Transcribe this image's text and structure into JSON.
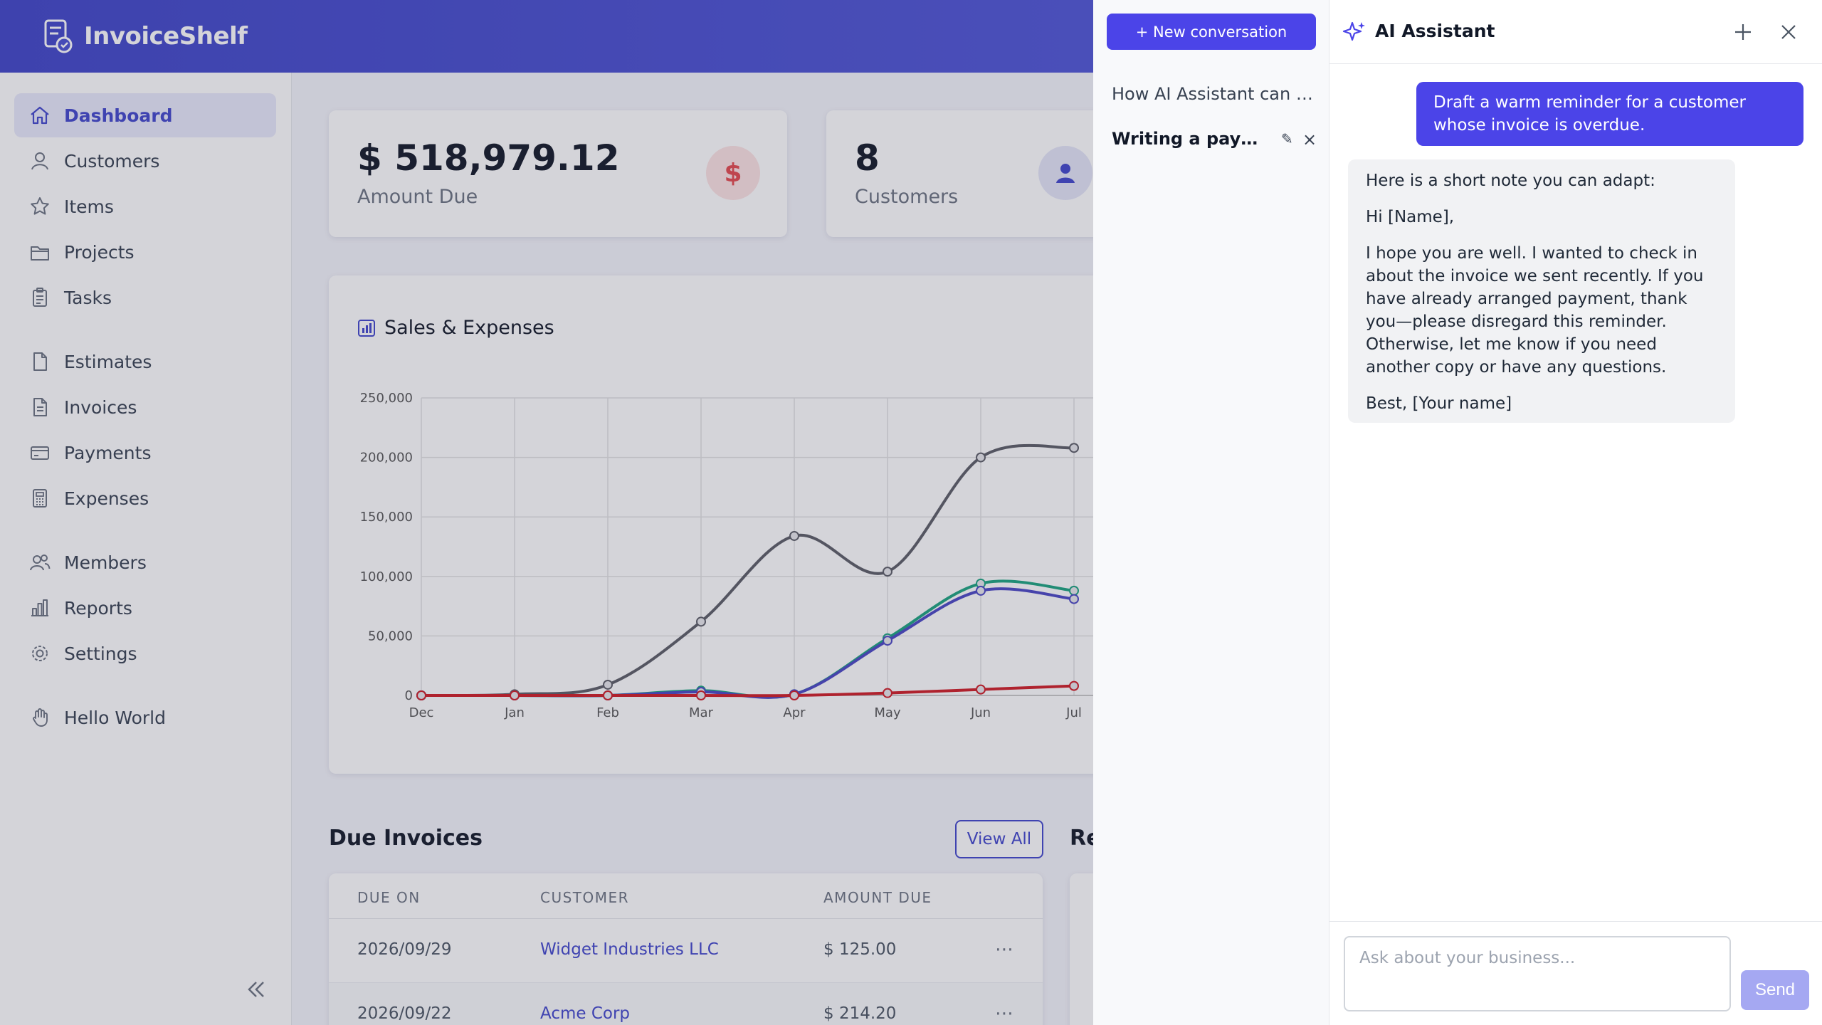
{
  "app": {
    "name": "InvoiceShelf"
  },
  "sidebar": {
    "items": [
      {
        "label": "Dashboard",
        "icon": "home-icon",
        "active": true
      },
      {
        "label": "Customers",
        "icon": "user-icon"
      },
      {
        "label": "Items",
        "icon": "star-icon"
      },
      {
        "label": "Projects",
        "icon": "folder-icon"
      },
      {
        "label": "Tasks",
        "icon": "clipboard-icon"
      },
      {
        "label": "Estimates",
        "icon": "document-icon"
      },
      {
        "label": "Invoices",
        "icon": "document-text-icon"
      },
      {
        "label": "Payments",
        "icon": "credit-card-icon"
      },
      {
        "label": "Expenses",
        "icon": "calculator-icon"
      },
      {
        "label": "Members",
        "icon": "users-icon"
      },
      {
        "label": "Reports",
        "icon": "chart-bar-icon"
      },
      {
        "label": "Settings",
        "icon": "cog-icon"
      },
      {
        "label": "Hello World",
        "icon": "hand-icon"
      }
    ]
  },
  "stats": {
    "amount_due": {
      "value": "$ 518,979.12",
      "label": "Amount Due",
      "icon": "dollar-icon"
    },
    "customers": {
      "value": "8",
      "label": "Customers",
      "icon": "user-icon"
    }
  },
  "chart_card": {
    "title": "Sales & Expenses"
  },
  "chart_data": {
    "type": "line",
    "categories": [
      "Dec",
      "Jan",
      "Feb",
      "Mar",
      "Apr",
      "May",
      "Jun",
      "Jul"
    ],
    "ylim": [
      0,
      250000
    ],
    "yticks": [
      "0",
      "50,000",
      "100,000",
      "150,000",
      "200,000",
      "250,000"
    ],
    "grid": true,
    "series": [
      {
        "color": "#5b5d66",
        "values": [
          0,
          1000,
          9000,
          62000,
          134000,
          104000,
          200000,
          208000
        ]
      },
      {
        "color": "#1aa37f",
        "values": [
          0,
          0,
          0,
          4000,
          1000,
          48000,
          94000,
          88000
        ]
      },
      {
        "color": "#4a46c4",
        "values": [
          0,
          0,
          0,
          3000,
          1000,
          46000,
          88000,
          81000
        ]
      },
      {
        "color": "#d01b24",
        "values": [
          0,
          0,
          0,
          0,
          0,
          2000,
          5000,
          8000
        ]
      }
    ]
  },
  "due_invoices": {
    "title": "Due Invoices",
    "view_all": "View All",
    "columns": [
      "DUE ON",
      "CUSTOMER",
      "AMOUNT DUE"
    ],
    "rows": [
      {
        "due_on": "2026/09/29",
        "customer": "Widget Industries LLC",
        "amount": "$ 125.00"
      },
      {
        "due_on": "2026/09/22",
        "customer": "Acme Corp",
        "amount": "$ 214.20"
      }
    ],
    "row_menu": "⋯"
  },
  "recent_title_partial": "Re",
  "conversations": {
    "new_button": "+ New conversation",
    "items": [
      {
        "title": "How AI Assistant can he..."
      },
      {
        "title": "Writing a payme...",
        "active": true
      }
    ],
    "edit_glyph": "✎",
    "delete_glyph": "×"
  },
  "assistant": {
    "title": "AI Assistant",
    "user_message": "Draft a warm reminder for a customer whose invoice is overdue.",
    "reply": [
      "Here is a short note you can adapt:",
      "Hi [Name],",
      "I hope you are well. I wanted to check in about the invoice we sent recently. If you have already arranged payment, thank you—please disregard this reminder. Otherwise, let me know if you need another copy or have any questions.",
      "Best, [Your name]"
    ],
    "input_placeholder": "Ask about your business...",
    "send_label": "Send"
  }
}
